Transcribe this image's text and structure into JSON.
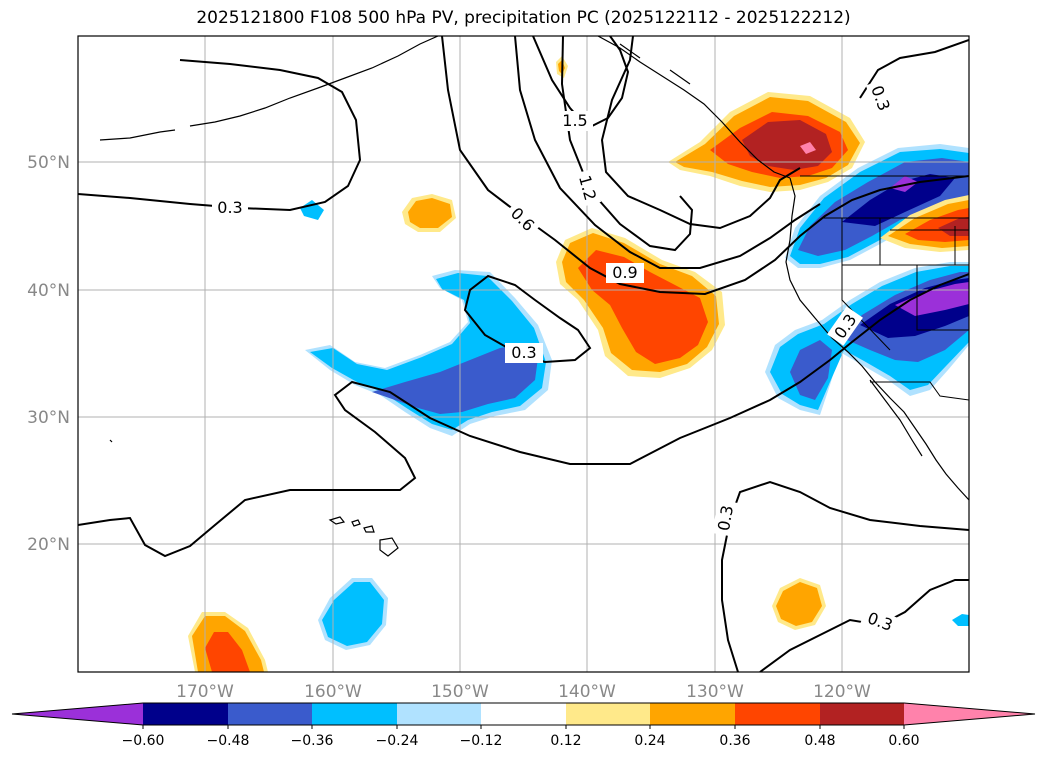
{
  "title": "2025121800 F108 500 hPa PV, precipitation PC (2025122112 - 2025122212)",
  "map": {
    "lat_labels": [
      "50°N",
      "40°N",
      "30°N",
      "20°N"
    ],
    "lon_labels": [
      "170°W",
      "160°W",
      "150°W",
      "140°W",
      "130°W",
      "120°W"
    ],
    "pv_contour_labels": [
      "0.3",
      "0.6",
      "0.9",
      "1.2",
      "1.5",
      "0.3",
      "0.3",
      "0.3",
      "0.3",
      "0.3"
    ]
  },
  "colorbar": {
    "ticks": [
      "−0.60",
      "−0.48",
      "−0.36",
      "−0.24",
      "−0.12",
      "0.12",
      "0.24",
      "0.36",
      "0.48",
      "0.60"
    ],
    "colors": [
      "#9b30d9",
      "#00008b",
      "#3a5bcc",
      "#00bfff",
      "#b0e2ff",
      "#ffffff",
      "#ffe98a",
      "#ffa500",
      "#ff4500",
      "#b22222",
      "#ff82ab"
    ]
  }
}
